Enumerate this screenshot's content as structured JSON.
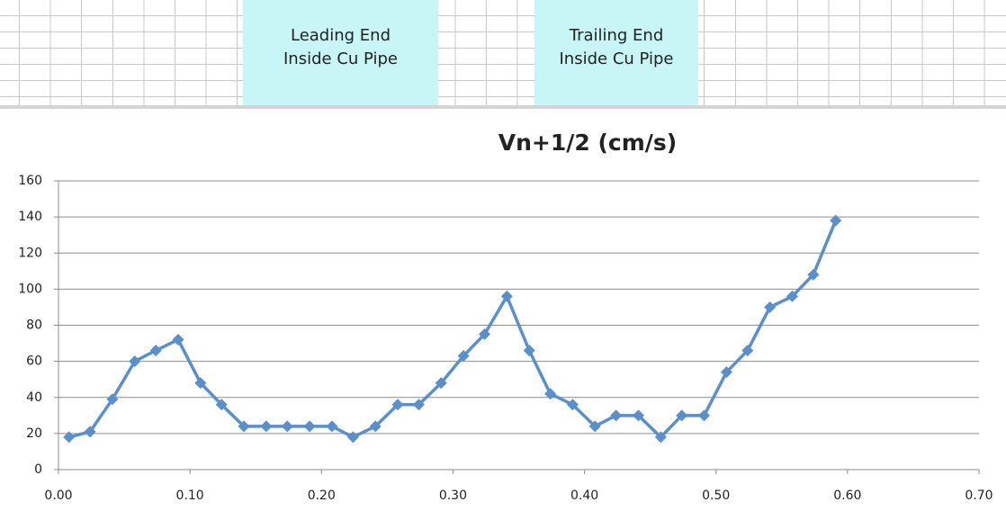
{
  "sheet_labels": [
    [
      "Leading End",
      "Inside Cu Pipe"
    ],
    [
      "Trailing End",
      "Inside Cu Pipe"
    ]
  ],
  "chart_data": {
    "type": "line",
    "title": "Vn+1/2 (cm/s)",
    "x": [
      0.008,
      0.024,
      0.041,
      0.058,
      0.074,
      0.091,
      0.108,
      0.124,
      0.141,
      0.158,
      0.174,
      0.191,
      0.208,
      0.224,
      0.241,
      0.258,
      0.274,
      0.291,
      0.308,
      0.324,
      0.341,
      0.358,
      0.374,
      0.391,
      0.408,
      0.424,
      0.441,
      0.458,
      0.474,
      0.491,
      0.508,
      0.524,
      0.541,
      0.558,
      0.574,
      0.591
    ],
    "series": [
      {
        "color": "#5b8fc9",
        "values": [
          18,
          21,
          39,
          60,
          66,
          72,
          48,
          36,
          24,
          24,
          24,
          24,
          24,
          18,
          24,
          36,
          36,
          48,
          63,
          75,
          96,
          66,
          42,
          36,
          24,
          30,
          30,
          18,
          30,
          30,
          54,
          66,
          90,
          96,
          108,
          138
        ]
      }
    ],
    "xlim": [
      0,
      0.7
    ],
    "xticks": [
      {
        "value": 0,
        "label": "0.00"
      },
      {
        "value": 0.1,
        "label": "0.10"
      },
      {
        "value": 0.2,
        "label": "0.20"
      },
      {
        "value": 0.3,
        "label": "0.30"
      },
      {
        "value": 0.4,
        "label": "0.40"
      },
      {
        "value": 0.5,
        "label": "0.50"
      },
      {
        "value": 0.6,
        "label": "0.60"
      },
      {
        "value": 0.7,
        "label": "0.70"
      }
    ],
    "ylim": [
      0,
      160
    ],
    "yticks": [
      0,
      20,
      40,
      60,
      80,
      100,
      120,
      140,
      160
    ],
    "grid": true
  }
}
